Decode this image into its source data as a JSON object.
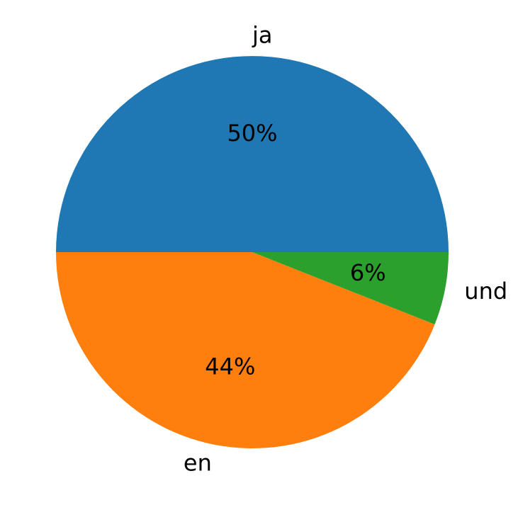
{
  "chart_data": {
    "type": "pie",
    "categories": [
      "ja",
      "en",
      "und"
    ],
    "values": [
      50,
      44,
      6
    ],
    "value_labels": [
      "50%",
      "44%",
      "6%"
    ],
    "colors": [
      "#1f77b4",
      "#ff7f0e",
      "#2ca02c"
    ]
  }
}
